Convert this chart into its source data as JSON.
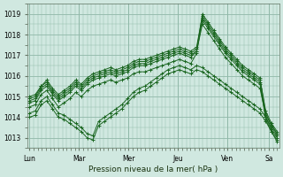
{
  "background_color": "#d0e8e0",
  "plot_bg_color": "#d0e8e0",
  "grid_color": "#90b8a8",
  "line_color": "#1a6620",
  "xlabel": "Pression niveau de la mer( hPa )",
  "ylim": [
    1012.5,
    1019.5
  ],
  "yticks": [
    1013,
    1014,
    1015,
    1016,
    1017,
    1018,
    1019
  ],
  "day_labels": [
    "Lun",
    "Mar",
    "Mer",
    "Jeu",
    "Ven",
    "Sa"
  ],
  "series": [
    [
      1014.7,
      1014.8,
      1015.3,
      1015.5,
      1015.1,
      1014.8,
      1015.0,
      1015.2,
      1015.5,
      1015.3,
      1015.6,
      1015.8,
      1015.9,
      1016.0,
      1016.1,
      1016.0,
      1016.1,
      1016.2,
      1016.4,
      1016.5,
      1016.5,
      1016.6,
      1016.7,
      1016.8,
      1016.9,
      1017.0,
      1017.1,
      1017.0,
      1016.9,
      1017.2,
      1019.0,
      1018.6,
      1018.2,
      1017.8,
      1017.4,
      1017.1,
      1016.8,
      1016.5,
      1016.3,
      1016.1,
      1015.9,
      1014.2,
      1013.6,
      1013.2
    ],
    [
      1014.5,
      1014.6,
      1015.1,
      1015.3,
      1014.9,
      1014.5,
      1014.7,
      1014.9,
      1015.2,
      1015.0,
      1015.3,
      1015.5,
      1015.6,
      1015.7,
      1015.8,
      1015.7,
      1015.8,
      1015.9,
      1016.1,
      1016.2,
      1016.2,
      1016.3,
      1016.4,
      1016.5,
      1016.6,
      1016.7,
      1016.8,
      1016.7,
      1016.6,
      1017.1,
      1018.8,
      1018.4,
      1018.0,
      1017.6,
      1017.2,
      1016.9,
      1016.6,
      1016.3,
      1016.1,
      1015.9,
      1015.7,
      1014.0,
      1013.4,
      1013.0
    ],
    [
      1014.2,
      1014.3,
      1014.8,
      1015.0,
      1014.6,
      1014.2,
      1014.1,
      1013.9,
      1013.7,
      1013.5,
      1013.2,
      1013.1,
      1013.8,
      1014.0,
      1014.2,
      1014.4,
      1014.6,
      1014.9,
      1015.2,
      1015.4,
      1015.5,
      1015.7,
      1015.9,
      1016.1,
      1016.3,
      1016.4,
      1016.5,
      1016.4,
      1016.3,
      1016.5,
      1016.4,
      1016.2,
      1016.0,
      1015.8,
      1015.6,
      1015.4,
      1015.2,
      1015.0,
      1014.8,
      1014.6,
      1014.4,
      1014.0,
      1013.5,
      1013.1
    ],
    [
      1014.0,
      1014.1,
      1014.6,
      1014.8,
      1014.4,
      1014.0,
      1013.9,
      1013.7,
      1013.5,
      1013.3,
      1013.0,
      1012.9,
      1013.6,
      1013.8,
      1014.0,
      1014.2,
      1014.4,
      1014.7,
      1015.0,
      1015.2,
      1015.3,
      1015.5,
      1015.7,
      1015.9,
      1016.1,
      1016.2,
      1016.3,
      1016.2,
      1016.1,
      1016.3,
      1016.2,
      1016.0,
      1015.8,
      1015.6,
      1015.4,
      1015.2,
      1015.0,
      1014.8,
      1014.6,
      1014.4,
      1014.2,
      1013.8,
      1013.3,
      1012.9
    ],
    [
      1014.9,
      1015.0,
      1015.5,
      1015.7,
      1015.3,
      1015.0,
      1015.2,
      1015.4,
      1015.7,
      1015.5,
      1015.8,
      1016.0,
      1016.1,
      1016.2,
      1016.3,
      1016.2,
      1016.3,
      1016.4,
      1016.6,
      1016.7,
      1016.7,
      1016.8,
      1016.9,
      1017.0,
      1017.1,
      1017.2,
      1017.3,
      1017.2,
      1017.1,
      1017.3,
      1018.7,
      1018.3,
      1017.9,
      1017.5,
      1017.1,
      1016.8,
      1016.5,
      1016.2,
      1016.0,
      1015.8,
      1015.6,
      1013.9,
      1013.3,
      1012.8
    ],
    [
      1014.8,
      1014.9,
      1015.4,
      1015.6,
      1015.2,
      1014.9,
      1015.1,
      1015.3,
      1015.6,
      1015.4,
      1015.7,
      1015.9,
      1016.0,
      1016.1,
      1016.2,
      1016.1,
      1016.2,
      1016.3,
      1016.5,
      1016.6,
      1016.6,
      1016.7,
      1016.8,
      1016.9,
      1017.0,
      1017.1,
      1017.2,
      1017.1,
      1017.0,
      1017.2,
      1018.5,
      1018.1,
      1017.7,
      1017.3,
      1016.9,
      1016.6,
      1016.3,
      1016.0,
      1015.8,
      1015.6,
      1015.4,
      1014.1,
      1013.6,
      1013.2
    ],
    [
      1015.0,
      1015.1,
      1015.5,
      1015.8,
      1015.4,
      1015.1,
      1015.3,
      1015.5,
      1015.8,
      1015.6,
      1015.9,
      1016.1,
      1016.2,
      1016.3,
      1016.4,
      1016.3,
      1016.4,
      1016.5,
      1016.7,
      1016.8,
      1016.8,
      1016.9,
      1017.0,
      1017.1,
      1017.2,
      1017.3,
      1017.4,
      1017.3,
      1017.2,
      1017.4,
      1018.9,
      1018.5,
      1018.1,
      1017.7,
      1017.3,
      1017.0,
      1016.7,
      1016.4,
      1016.2,
      1016.0,
      1015.8,
      1014.3,
      1013.7,
      1013.3
    ]
  ],
  "n_days": 5
}
